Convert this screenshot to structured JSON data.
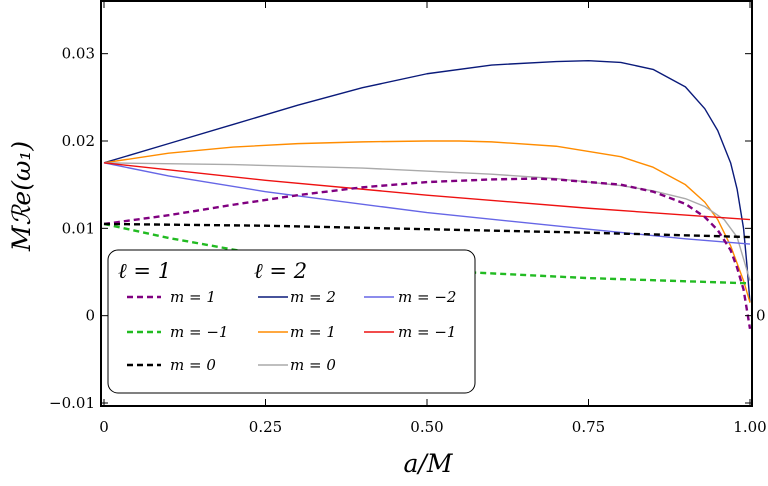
{
  "chart_data": {
    "type": "line",
    "title": "",
    "xlabel": "a/M",
    "ylabel": "Mℛe(ω₁)",
    "xlim": [
      0,
      1.0
    ],
    "ylim": [
      -0.01,
      0.035
    ],
    "xticks": [
      {
        "value": 0,
        "label": "0"
      },
      {
        "value": 0.25,
        "label": "0.25"
      },
      {
        "value": 0.5,
        "label": "0.50"
      },
      {
        "value": 0.75,
        "label": "0.75"
      },
      {
        "value": 1.0,
        "label": "1.00"
      }
    ],
    "yticks": [
      {
        "value": -0.01,
        "label": "−0.01"
      },
      {
        "value": 0,
        "label": "0"
      },
      {
        "value": 0.01,
        "label": "0.01"
      },
      {
        "value": 0.02,
        "label": "0.02"
      },
      {
        "value": 0.03,
        "label": "0.03"
      }
    ],
    "right_label": {
      "value": 0,
      "label": "0"
    },
    "grid": false,
    "legend": {
      "position": "bottom-left",
      "groups": [
        {
          "title": "ℓ = 1",
          "entries": [
            "m = 1",
            "m = −1",
            "m = 0"
          ]
        },
        {
          "title": "ℓ = 2",
          "entries": [
            "m = 2",
            "m = 1",
            "m = 0",
            "m = −2",
            "m = −1"
          ]
        }
      ]
    },
    "series": [
      {
        "name": "m = 2",
        "group": "ℓ = 2",
        "color": "#0a1a7a",
        "dash": "solid",
        "x": [
          0,
          0.1,
          0.2,
          0.3,
          0.4,
          0.5,
          0.6,
          0.7,
          0.75,
          0.8,
          0.85,
          0.9,
          0.93,
          0.95,
          0.97,
          0.98,
          0.99,
          0.995,
          1.0
        ],
        "y": [
          0.0175,
          0.0197,
          0.0219,
          0.0241,
          0.0261,
          0.0277,
          0.0287,
          0.0291,
          0.0292,
          0.029,
          0.0282,
          0.0262,
          0.0237,
          0.0212,
          0.0175,
          0.0145,
          0.01,
          0.006,
          0.0015
        ]
      },
      {
        "name": "m = 1",
        "group": "ℓ = 2",
        "color": "#ff8c00",
        "dash": "solid",
        "x": [
          0,
          0.1,
          0.2,
          0.3,
          0.4,
          0.5,
          0.55,
          0.6,
          0.7,
          0.8,
          0.85,
          0.9,
          0.93,
          0.95,
          0.97,
          0.98,
          0.99,
          1.0
        ],
        "y": [
          0.0175,
          0.0186,
          0.0193,
          0.0197,
          0.0199,
          0.02,
          0.02,
          0.0199,
          0.0194,
          0.0182,
          0.017,
          0.015,
          0.013,
          0.011,
          0.008,
          0.006,
          0.004,
          0.0015
        ]
      },
      {
        "name": "m = 0",
        "group": "ℓ = 2",
        "color": "#aaaaaa",
        "dash": "solid",
        "x": [
          0,
          0.2,
          0.4,
          0.6,
          0.7,
          0.8,
          0.85,
          0.9,
          0.93,
          0.96,
          0.98,
          1.0
        ],
        "y": [
          0.0175,
          0.0173,
          0.0169,
          0.0162,
          0.0157,
          0.0149,
          0.0143,
          0.0134,
          0.0125,
          0.011,
          0.009,
          0.004
        ]
      },
      {
        "name": "m = −2",
        "group": "ℓ = 2",
        "color": "#6666e6",
        "dash": "solid",
        "x": [
          0,
          0.1,
          0.25,
          0.5,
          0.75,
          0.9,
          1.0
        ],
        "y": [
          0.0175,
          0.016,
          0.0142,
          0.0118,
          0.0099,
          0.0088,
          0.0082
        ]
      },
      {
        "name": "m = −1",
        "group": "ℓ = 2",
        "color": "#ee1111",
        "dash": "solid",
        "x": [
          0,
          0.25,
          0.5,
          0.75,
          1.0
        ],
        "y": [
          0.0175,
          0.0155,
          0.0138,
          0.0123,
          0.011
        ]
      },
      {
        "name": "m = 1",
        "group": "ℓ = 1",
        "color": "#800080",
        "dash": "dashed",
        "x": [
          0,
          0.1,
          0.2,
          0.3,
          0.4,
          0.5,
          0.6,
          0.67,
          0.7,
          0.8,
          0.85,
          0.9,
          0.93,
          0.95,
          0.97,
          0.98,
          0.99,
          1.0
        ],
        "y": [
          0.0105,
          0.0115,
          0.0127,
          0.0138,
          0.0147,
          0.0153,
          0.0156,
          0.0157,
          0.0156,
          0.015,
          0.0142,
          0.0128,
          0.0113,
          0.0098,
          0.0075,
          0.0055,
          0.003,
          -0.0015
        ]
      },
      {
        "name": "m = −1",
        "group": "ℓ = 1",
        "color": "#22bb22",
        "dash": "dashed",
        "x": [
          0,
          0.1,
          0.25,
          0.5,
          0.75,
          1.0
        ],
        "y": [
          0.0105,
          0.0089,
          0.0069,
          0.0052,
          0.0043,
          0.0037
        ]
      },
      {
        "name": "m = 0",
        "group": "ℓ = 1",
        "color": "#000000",
        "dash": "dashed",
        "x": [
          0,
          0.25,
          0.5,
          0.75,
          1.0
        ],
        "y": [
          0.0105,
          0.0103,
          0.0099,
          0.0095,
          0.009
        ]
      }
    ]
  }
}
